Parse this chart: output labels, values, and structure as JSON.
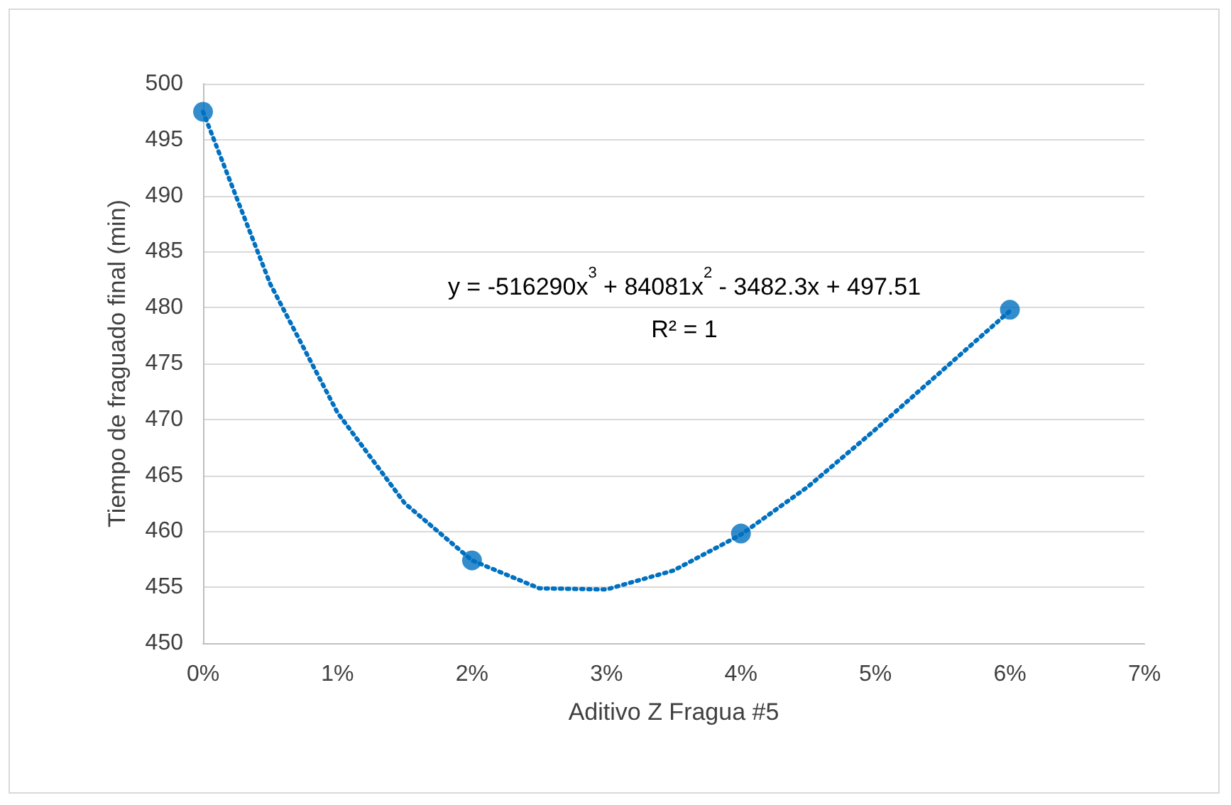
{
  "chart_data": {
    "type": "scatter",
    "xlabel": "Aditivo Z Fragua #5",
    "ylabel": "Tiempo de fraguado final (min)",
    "x": [
      0,
      0.02,
      0.04,
      0.06
    ],
    "series": [
      {
        "color": "#0070c0",
        "marker": "circle",
        "values": [
          497.5,
          457.4,
          459.8,
          479.8
        ]
      },
      {
        "type": "line",
        "color": "#0070c0",
        "line_style": "dotted",
        "marker": "none",
        "x": [
          0,
          0.005,
          0.01,
          0.015,
          0.02,
          0.025,
          0.03,
          0.035,
          0.04,
          0.045,
          0.05,
          0.055,
          0.06
        ],
        "values": [
          497.5,
          482.1,
          470.6,
          462.5,
          457.4,
          454.9,
          454.8,
          456.5,
          459.7,
          464.0,
          469.1,
          474.4,
          479.7
        ]
      }
    ],
    "annotations": [
      "y = -516290x$^{3}$ + 84081x$^{2}$ - 3482.3x + 497.51",
      "R² = 1"
    ],
    "xlim": [
      0,
      0.07
    ],
    "xticks": [
      {
        "value": 0,
        "label": "0%"
      },
      {
        "value": 0.01,
        "label": "1%"
      },
      {
        "value": 0.02,
        "label": "2%"
      },
      {
        "value": 0.03,
        "label": "3%"
      },
      {
        "value": 0.04,
        "label": "4%"
      },
      {
        "value": 0.05,
        "label": "5%"
      },
      {
        "value": 0.06,
        "label": "6%"
      },
      {
        "value": 0.07,
        "label": "7%"
      }
    ],
    "ylim": [
      450,
      500
    ],
    "yticks": [
      450,
      455,
      460,
      465,
      470,
      475,
      480,
      485,
      490,
      495,
      500
    ],
    "grid": "y"
  }
}
